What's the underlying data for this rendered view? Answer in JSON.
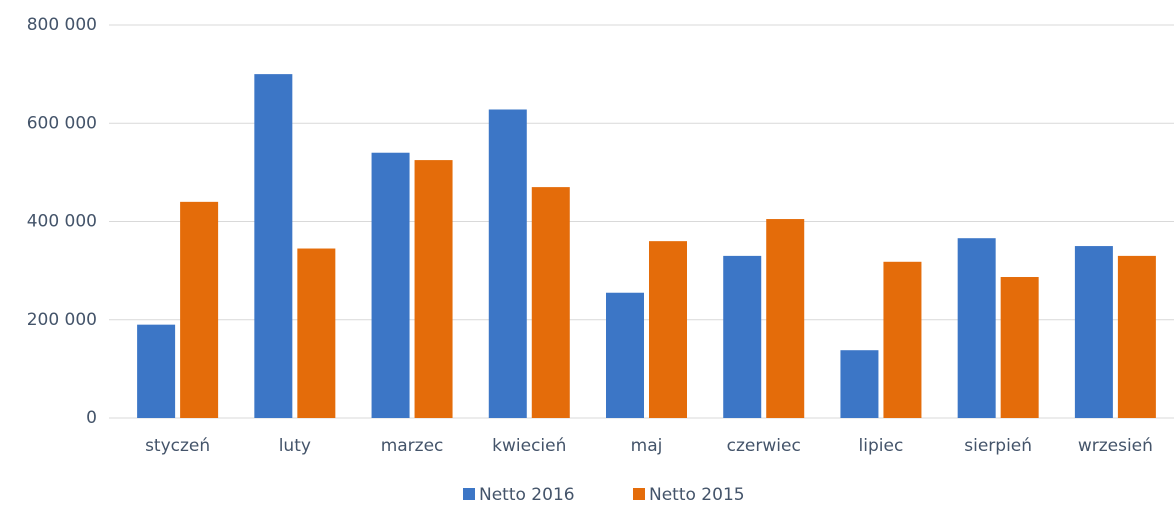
{
  "chart_data": {
    "type": "bar",
    "categories": [
      "styczeń",
      "luty",
      "marzec",
      "kwiecień",
      "maj",
      "czerwiec",
      "lipiec",
      "sierpień",
      "wrzesień"
    ],
    "series": [
      {
        "name": "Netto 2016",
        "color": "#3c76c6",
        "values": [
          190000,
          700000,
          540000,
          628000,
          255000,
          330000,
          138000,
          366000,
          350000
        ]
      },
      {
        "name": "Netto 2015",
        "color": "#e46c0a",
        "values": [
          440000,
          345000,
          525000,
          470000,
          360000,
          405000,
          318000,
          287000,
          330000
        ]
      }
    ],
    "ylim": [
      0,
      800000
    ],
    "yticks": [
      {
        "value": 0,
        "label": "0"
      },
      {
        "value": 200000,
        "label": "200 000"
      },
      {
        "value": 400000,
        "label": "400 000"
      },
      {
        "value": 600000,
        "label": "600 000"
      },
      {
        "value": 800000,
        "label": "800 000"
      }
    ],
    "grid": true,
    "legend": "bottom"
  }
}
